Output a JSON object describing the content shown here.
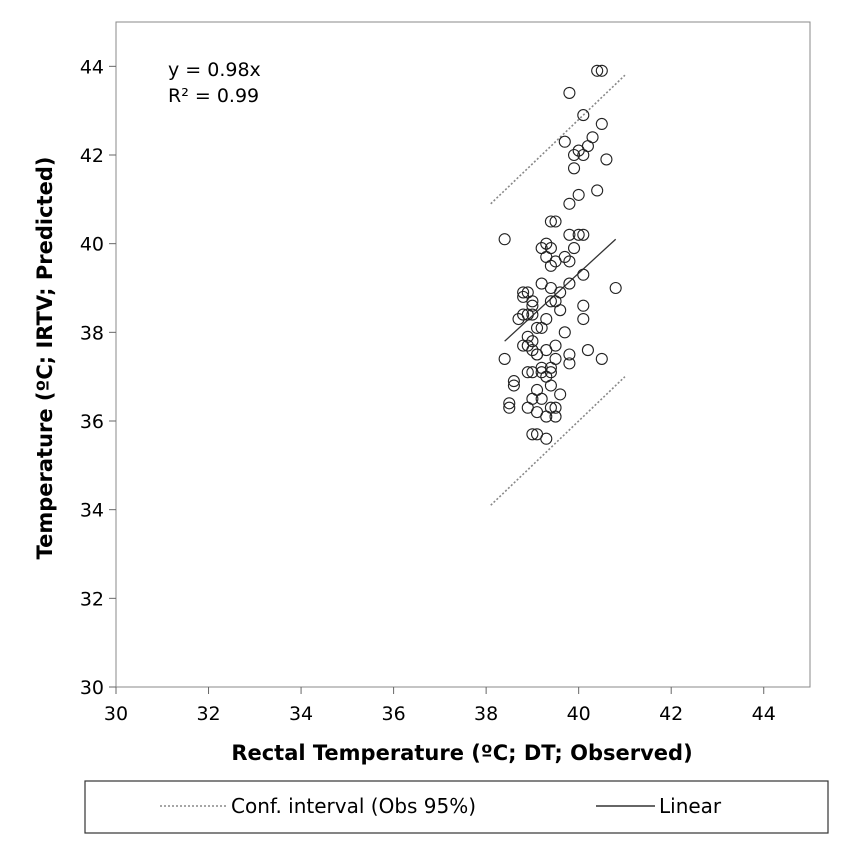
{
  "chart_data": {
    "type": "scatter",
    "title": "",
    "xlabel": "Rectal Temperature (ºC; DT; Observed)",
    "ylabel": "Temperature (ºC; IRTV; Predicted)",
    "xlim": [
      30,
      45
    ],
    "ylim": [
      30,
      45
    ],
    "x_ticks": [
      30,
      32,
      34,
      36,
      38,
      40,
      42,
      44
    ],
    "y_ticks": [
      30,
      32,
      34,
      36,
      38,
      40,
      42,
      44
    ],
    "grid": false,
    "legend_position": "bottom",
    "annotations": [
      "y = 0.98x",
      "R² = 0.99"
    ],
    "series": [
      {
        "name": "",
        "type": "scatter",
        "marker": "open-circle",
        "x": [
          40.4,
          40.5,
          39.8,
          40.5,
          40.1,
          40.3,
          39.7,
          40.2,
          40.0,
          39.9,
          40.6,
          40.1,
          39.9,
          40.4,
          40.0,
          39.8,
          39.4,
          39.5,
          39.8,
          40.0,
          40.1,
          38.4,
          39.3,
          39.2,
          39.4,
          39.3,
          39.5,
          39.7,
          39.8,
          39.4,
          39.9,
          40.1,
          39.8,
          39.2,
          39.4,
          39.6,
          40.8,
          38.8,
          38.9,
          39.0,
          38.8,
          39.4,
          39.5,
          40.1,
          39.0,
          39.6,
          38.7,
          38.8,
          38.9,
          39.0,
          39.3,
          39.1,
          40.1,
          39.2,
          39.7,
          38.9,
          38.9,
          38.8,
          39.0,
          39.0,
          39.5,
          40.2,
          39.1,
          39.1,
          39.3,
          39.8,
          39.8,
          40.5,
          38.4,
          39.2,
          39.2,
          39.5,
          38.9,
          39.0,
          39.4,
          39.3,
          39.4,
          38.6,
          38.6,
          39.6,
          39.4,
          39.1,
          39.2,
          39.0,
          38.5,
          38.9,
          39.4,
          39.5,
          38.5,
          39.5,
          39.1,
          39.3,
          39.0,
          39.1,
          39.3
        ],
        "y": [
          43.9,
          43.9,
          43.4,
          42.7,
          42.9,
          42.4,
          42.3,
          42.2,
          42.1,
          42.0,
          41.9,
          42.0,
          41.7,
          41.2,
          41.1,
          40.9,
          40.5,
          40.5,
          40.2,
          40.2,
          40.2,
          40.1,
          40.0,
          39.9,
          39.9,
          39.7,
          39.6,
          39.7,
          39.6,
          39.5,
          39.9,
          39.3,
          39.1,
          39.1,
          39.0,
          38.9,
          39.0,
          38.9,
          38.9,
          38.7,
          38.8,
          38.7,
          38.7,
          38.6,
          38.6,
          38.5,
          38.3,
          38.4,
          38.4,
          38.4,
          38.3,
          38.1,
          38.3,
          38.1,
          38.0,
          37.9,
          37.7,
          37.7,
          37.8,
          37.6,
          37.7,
          37.6,
          37.5,
          37.5,
          37.6,
          37.5,
          37.3,
          37.4,
          37.4,
          37.2,
          37.1,
          37.4,
          37.1,
          37.1,
          37.1,
          37.0,
          37.2,
          36.9,
          36.8,
          36.6,
          36.8,
          36.7,
          36.5,
          36.5,
          36.4,
          36.3,
          36.3,
          36.3,
          36.3,
          36.1,
          36.2,
          36.1,
          35.7,
          35.7,
          35.6
        ]
      },
      {
        "name": "Conf. interval (Obs 95%)",
        "type": "line",
        "style": "dotted",
        "x": [
          38.1,
          41.0
        ],
        "y": [
          40.9,
          43.8
        ]
      },
      {
        "name": "Conf. interval (Obs 95%)",
        "type": "line",
        "style": "dotted",
        "x": [
          38.1,
          41.0
        ],
        "y": [
          34.1,
          37.0
        ]
      },
      {
        "name": "Linear",
        "type": "line",
        "style": "solid",
        "x": [
          38.4,
          40.8
        ],
        "y": [
          37.8,
          40.1
        ]
      }
    ],
    "legend": [
      {
        "label": "Conf. interval (Obs 95%)",
        "style": "dotted"
      },
      {
        "label": "Linear",
        "style": "solid"
      }
    ]
  }
}
